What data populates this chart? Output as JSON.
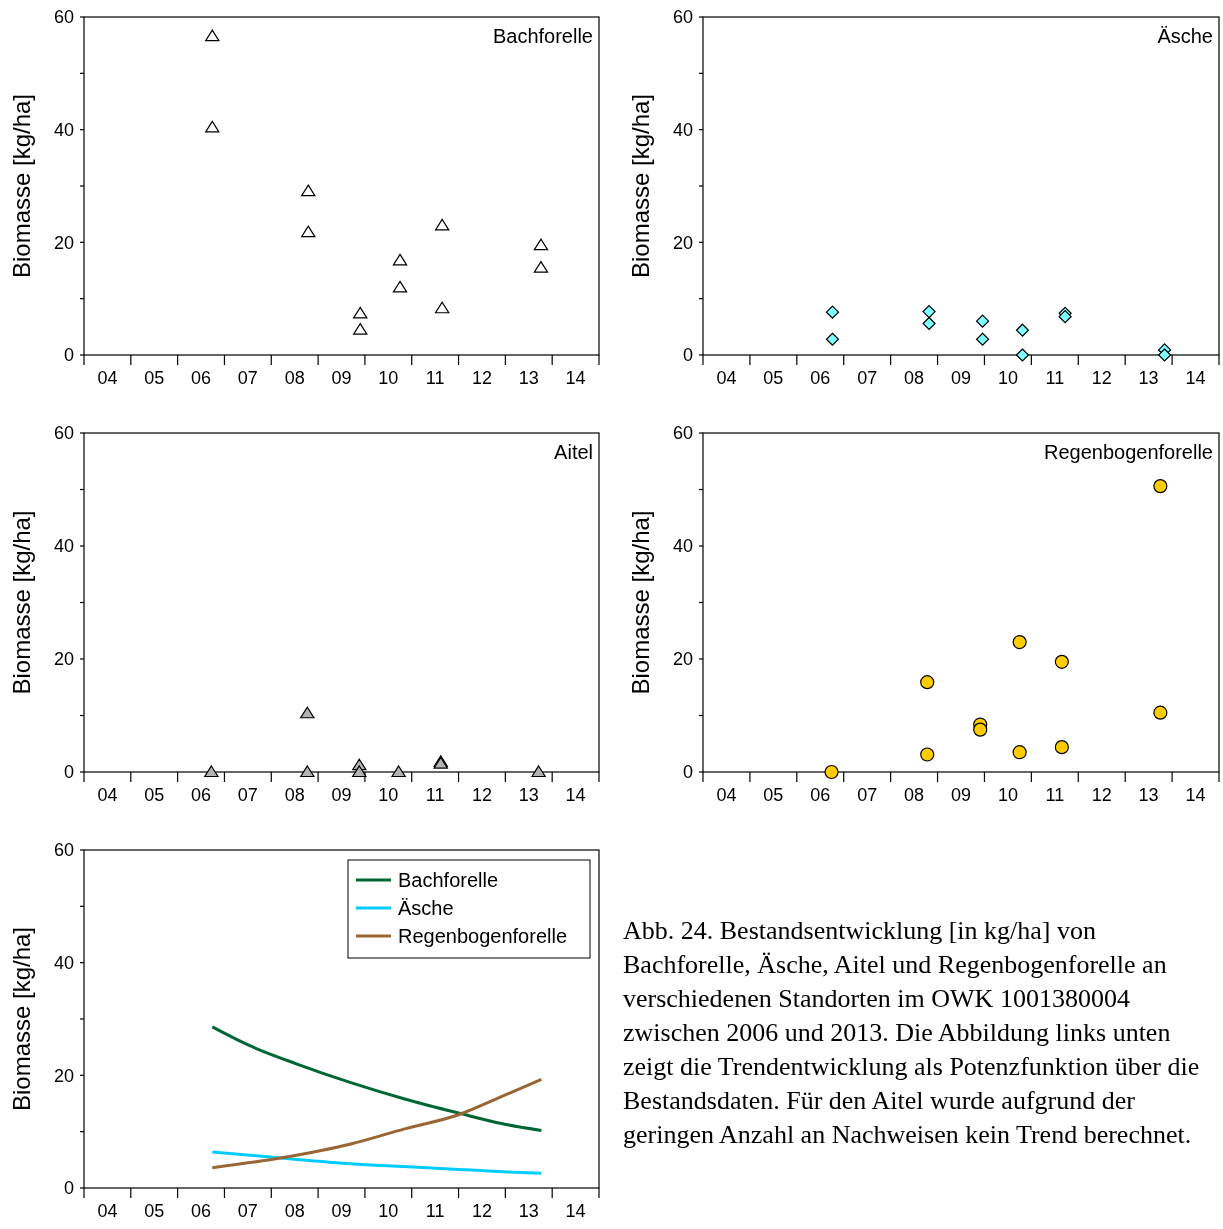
{
  "chart_data": [
    {
      "type": "scatter",
      "title": "Bachforelle",
      "ylabel": "Biomasse [kg/ha]",
      "xlim": [
        3.5,
        14.5
      ],
      "ylim": [
        0,
        60
      ],
      "marker": "triangle",
      "xticks": [
        {
          "value": 3.5,
          "label": null
        },
        {
          "value": 4,
          "label": "04"
        },
        {
          "value": 4.5,
          "label": null
        },
        {
          "value": 5,
          "label": "05"
        },
        {
          "value": 5.5,
          "label": null
        },
        {
          "value": 6,
          "label": "06"
        },
        {
          "value": 6.5,
          "label": null
        },
        {
          "value": 7,
          "label": "07"
        },
        {
          "value": 7.5,
          "label": null
        },
        {
          "value": 8,
          "label": "08"
        },
        {
          "value": 8.5,
          "label": null
        },
        {
          "value": 9,
          "label": "09"
        },
        {
          "value": 9.5,
          "label": null
        },
        {
          "value": 10,
          "label": "10"
        },
        {
          "value": 10.5,
          "label": null
        },
        {
          "value": 11,
          "label": "11"
        },
        {
          "value": 11.5,
          "label": null
        },
        {
          "value": 12,
          "label": "12"
        },
        {
          "value": 12.5,
          "label": null
        },
        {
          "value": 13,
          "label": "13"
        },
        {
          "value": 13.5,
          "label": null
        },
        {
          "value": 14,
          "label": "14"
        },
        {
          "value": 14.5,
          "label": null
        }
      ],
      "yticks": [
        0,
        {
          "value": 10,
          "label": null
        },
        20,
        {
          "value": 30,
          "label": null
        },
        40,
        {
          "value": 50,
          "label": null
        },
        60
      ],
      "series": [
        {
          "color": "#ffffff",
          "x": [
            6.24,
            6.24,
            8.29,
            8.29,
            9.4,
            9.4,
            10.25,
            10.25,
            11.15,
            11.15,
            13.26,
            13.26
          ],
          "values": [
            56.6,
            40.4,
            29.1,
            21.8,
            7.4,
            4.5,
            16.8,
            12.0,
            23.0,
            8.3,
            19.5,
            15.5
          ]
        }
      ]
    },
    {
      "type": "scatter",
      "title": "Äsche",
      "ylabel": "Biomasse [kg/ha]",
      "xlim": [
        3.5,
        14.5
      ],
      "ylim": [
        0,
        60
      ],
      "marker": "diamond",
      "xticks": [
        {
          "value": 3.5,
          "label": null
        },
        {
          "value": 4,
          "label": "04"
        },
        {
          "value": 4.5,
          "label": null
        },
        {
          "value": 5,
          "label": "05"
        },
        {
          "value": 5.5,
          "label": null
        },
        {
          "value": 6,
          "label": "06"
        },
        {
          "value": 6.5,
          "label": null
        },
        {
          "value": 7,
          "label": "07"
        },
        {
          "value": 7.5,
          "label": null
        },
        {
          "value": 8,
          "label": "08"
        },
        {
          "value": 8.5,
          "label": null
        },
        {
          "value": 9,
          "label": "09"
        },
        {
          "value": 9.5,
          "label": null
        },
        {
          "value": 10,
          "label": "10"
        },
        {
          "value": 10.5,
          "label": null
        },
        {
          "value": 11,
          "label": "11"
        },
        {
          "value": 11.5,
          "label": null
        },
        {
          "value": 12,
          "label": "12"
        },
        {
          "value": 12.5,
          "label": null
        },
        {
          "value": 13,
          "label": "13"
        },
        {
          "value": 13.5,
          "label": null
        },
        {
          "value": 14,
          "label": "14"
        },
        {
          "value": 14.5,
          "label": null
        }
      ],
      "yticks": [
        0,
        {
          "value": 10,
          "label": null
        },
        20,
        {
          "value": 30,
          "label": null
        },
        40,
        {
          "value": 50,
          "label": null
        },
        60
      ],
      "series": [
        {
          "color": "#80ffff",
          "x": [
            6.26,
            6.26,
            8.32,
            8.32,
            9.46,
            9.46,
            10.31,
            10.31,
            11.22,
            11.22,
            13.34,
            13.34
          ],
          "values": [
            7.6,
            2.8,
            7.7,
            5.6,
            6.0,
            2.8,
            4.4,
            0,
            7.4,
            6.8,
            0.9,
            0
          ]
        }
      ]
    },
    {
      "type": "scatter",
      "title": "Aitel",
      "ylabel": "Biomasse [kg/ha]",
      "xlim": [
        3.5,
        14.5
      ],
      "ylim": [
        0,
        60
      ],
      "marker": "triangle",
      "xticks": [
        {
          "value": 3.5,
          "label": null
        },
        {
          "value": 4,
          "label": "04"
        },
        {
          "value": 4.5,
          "label": null
        },
        {
          "value": 5,
          "label": "05"
        },
        {
          "value": 5.5,
          "label": null
        },
        {
          "value": 6,
          "label": "06"
        },
        {
          "value": 6.5,
          "label": null
        },
        {
          "value": 7,
          "label": "07"
        },
        {
          "value": 7.5,
          "label": null
        },
        {
          "value": 8,
          "label": "08"
        },
        {
          "value": 8.5,
          "label": null
        },
        {
          "value": 9,
          "label": "09"
        },
        {
          "value": 9.5,
          "label": null
        },
        {
          "value": 10,
          "label": "10"
        },
        {
          "value": 10.5,
          "label": null
        },
        {
          "value": 11,
          "label": "11"
        },
        {
          "value": 11.5,
          "label": null
        },
        {
          "value": 12,
          "label": "12"
        },
        {
          "value": 12.5,
          "label": null
        },
        {
          "value": 13,
          "label": "13"
        },
        {
          "value": 13.5,
          "label": null
        },
        {
          "value": 14,
          "label": "14"
        },
        {
          "value": 14.5,
          "label": null
        }
      ],
      "yticks": [
        0,
        {
          "value": 10,
          "label": null
        },
        20,
        {
          "value": 30,
          "label": null
        },
        40,
        {
          "value": 50,
          "label": null
        },
        60
      ],
      "series": [
        {
          "color": "#b3b3b3",
          "x": [
            6.22,
            8.27,
            8.27,
            9.38,
            9.38,
            10.22,
            11.12,
            11.12,
            13.21
          ],
          "values": [
            0,
            10.4,
            0,
            1.2,
            0,
            0,
            1.8,
            1.5,
            0
          ]
        }
      ]
    },
    {
      "type": "scatter",
      "title": "Regenbogenforelle",
      "ylabel": "Biomasse [kg/ha]",
      "xlim": [
        3.5,
        14.5
      ],
      "ylim": [
        0,
        60
      ],
      "marker": "circle",
      "xticks": [
        {
          "value": 3.5,
          "label": null
        },
        {
          "value": 4,
          "label": "04"
        },
        {
          "value": 4.5,
          "label": null
        },
        {
          "value": 5,
          "label": "05"
        },
        {
          "value": 5.5,
          "label": null
        },
        {
          "value": 6,
          "label": "06"
        },
        {
          "value": 6.5,
          "label": null
        },
        {
          "value": 7,
          "label": "07"
        },
        {
          "value": 7.5,
          "label": null
        },
        {
          "value": 8,
          "label": "08"
        },
        {
          "value": 8.5,
          "label": null
        },
        {
          "value": 9,
          "label": "09"
        },
        {
          "value": 9.5,
          "label": null
        },
        {
          "value": 10,
          "label": "10"
        },
        {
          "value": 10.5,
          "label": null
        },
        {
          "value": 11,
          "label": "11"
        },
        {
          "value": 11.5,
          "label": null
        },
        {
          "value": 12,
          "label": "12"
        },
        {
          "value": 12.5,
          "label": null
        },
        {
          "value": 13,
          "label": "13"
        },
        {
          "value": 13.5,
          "label": null
        },
        {
          "value": 14,
          "label": "14"
        },
        {
          "value": 14.5,
          "label": null
        }
      ],
      "yticks": [
        0,
        {
          "value": 10,
          "label": null
        },
        20,
        {
          "value": 30,
          "label": null
        },
        40,
        {
          "value": 50,
          "label": null
        },
        60
      ],
      "series": [
        {
          "color": "#ffcc00",
          "x": [
            6.24,
            8.28,
            8.28,
            9.41,
            9.41,
            10.25,
            10.25,
            11.15,
            11.15,
            13.25,
            13.25
          ],
          "values": [
            0,
            15.9,
            3.1,
            8.4,
            7.5,
            23.0,
            3.5,
            19.5,
            4.4,
            50.6,
            10.5
          ]
        }
      ]
    },
    {
      "type": "line",
      "ylabel": "Biomasse [kg/ha]",
      "xlim": [
        3.5,
        14.5
      ],
      "ylim": [
        0,
        60
      ],
      "legend": "top right",
      "xticks": [
        {
          "value": 3.5,
          "label": null
        },
        {
          "value": 4,
          "label": "04"
        },
        {
          "value": 4.5,
          "label": null
        },
        {
          "value": 5,
          "label": "05"
        },
        {
          "value": 5.5,
          "label": null
        },
        {
          "value": 6,
          "label": "06"
        },
        {
          "value": 6.5,
          "label": null
        },
        {
          "value": 7,
          "label": "07"
        },
        {
          "value": 7.5,
          "label": null
        },
        {
          "value": 8,
          "label": "08"
        },
        {
          "value": 8.5,
          "label": null
        },
        {
          "value": 9,
          "label": "09"
        },
        {
          "value": 9.5,
          "label": null
        },
        {
          "value": 10,
          "label": "10"
        },
        {
          "value": 10.5,
          "label": null
        },
        {
          "value": 11,
          "label": "11"
        },
        {
          "value": 11.5,
          "label": null
        },
        {
          "value": 12,
          "label": "12"
        },
        {
          "value": 12.5,
          "label": null
        },
        {
          "value": 13,
          "label": "13"
        },
        {
          "value": 13.5,
          "label": null
        },
        {
          "value": 14,
          "label": "14"
        },
        {
          "value": 14.5,
          "label": null
        }
      ],
      "yticks": [
        0,
        {
          "value": 10,
          "label": null
        },
        20,
        {
          "value": 30,
          "label": null
        },
        40,
        {
          "value": 50,
          "label": null
        },
        60
      ],
      "series": [
        {
          "name": "Bachforelle",
          "color": "#006633",
          "x": [
            6.24,
            7.03,
            8.05,
            9.2,
            10.35,
            11.5,
            12.44,
            13.27
          ],
          "values": [
            28.6,
            25.3,
            22.0,
            18.7,
            15.8,
            13.3,
            11.4,
            10.2
          ]
        },
        {
          "name": "Äsche",
          "color": "#00ccff",
          "x": [
            6.24,
            7.76,
            9.2,
            10.35,
            11.5,
            12.44,
            13.27
          ],
          "values": [
            6.4,
            5.3,
            4.3,
            3.8,
            3.3,
            2.9,
            2.6
          ]
        },
        {
          "name": "Regenbogenforelle",
          "color": "#996633",
          "x": [
            6.24,
            7.76,
            9.2,
            10.35,
            11.5,
            12.44,
            13.27
          ],
          "values": [
            3.6,
            5.4,
            7.8,
            10.5,
            13.0,
            16.3,
            19.3
          ]
        }
      ]
    },
    {
      "type": "other",
      "annotations": [
        "Abb. 24. Bestandsentwicklung [in kg/ha] von Bachforelle, Äsche, Aitel und Regenbogenforelle an verschiedenen Standorten im OWK 1001380004 zwischen 2006 und 2013. Die Abbildung links unten zeigt die Trendentwicklung als Potenzfunktion über die Bestandsdaten. Für den Aitel wurde aufgrund der geringen Anzahl an Nachweisen kein Trend berechnet."
      ]
    }
  ]
}
